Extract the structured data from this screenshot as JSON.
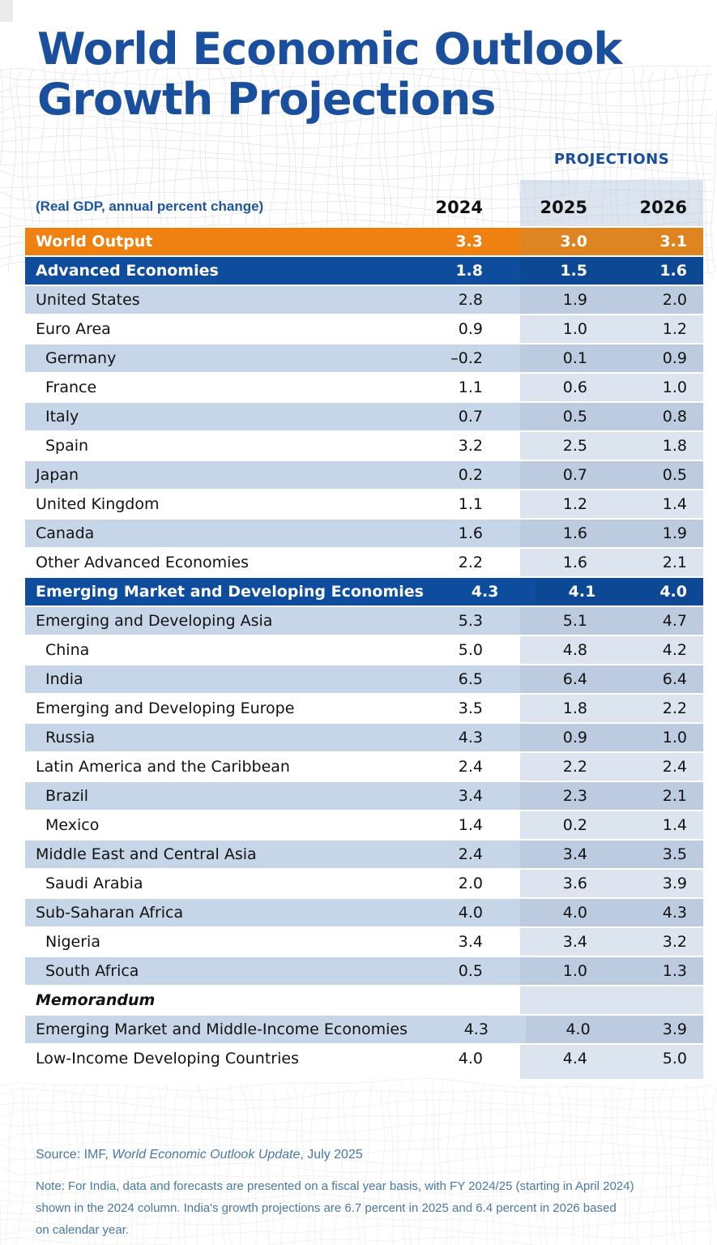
{
  "title": {
    "line1": "World Economic Outlook",
    "line2": "Growth Projections"
  },
  "colors": {
    "title_blue": "#1A4F9E",
    "header_blue": "#1C56A0",
    "projections_blue": "#1B4E99",
    "proj_band": "#DBE4EF",
    "orange_row": "#EE8110",
    "orange_row_proj": "#DE8420",
    "navy_row": "#0E4C9E",
    "navy_row_proj": "#0D4894",
    "light_row": "#C6D5E7",
    "light_row_proj": "#BCCBDF",
    "row_text_dark": "#121212",
    "row_text_light": "#FFFFFF",
    "year_text": "#111111",
    "footer_blue": "#4A78A2"
  },
  "chart_data": {
    "type": "table",
    "title": "World Economic Outlook Growth Projections",
    "unit_label": "(Real GDP, annual percent change)",
    "projections_label": "PROJECTIONS",
    "columns": [
      "2024",
      "2025",
      "2026"
    ],
    "projection_columns": [
      "2025",
      "2026"
    ],
    "rows": [
      {
        "label": "World Output",
        "values": [
          "3.3",
          "3.0",
          "3.1"
        ],
        "style": "orange",
        "bold": true
      },
      {
        "label": "Advanced Economies",
        "values": [
          "1.8",
          "1.5",
          "1.6"
        ],
        "style": "navy",
        "bold": true
      },
      {
        "label": "United States",
        "values": [
          "2.8",
          "1.9",
          "2.0"
        ],
        "style": "light"
      },
      {
        "label": "Euro Area",
        "values": [
          "0.9",
          "1.0",
          "1.2"
        ],
        "style": "white"
      },
      {
        "label": "Germany",
        "values": [
          "–0.2",
          "0.1",
          "0.9"
        ],
        "style": "light",
        "indent": true
      },
      {
        "label": "France",
        "values": [
          "1.1",
          "0.6",
          "1.0"
        ],
        "style": "white",
        "indent": true
      },
      {
        "label": "Italy",
        "values": [
          "0.7",
          "0.5",
          "0.8"
        ],
        "style": "light",
        "indent": true
      },
      {
        "label": "Spain",
        "values": [
          "3.2",
          "2.5",
          "1.8"
        ],
        "style": "white",
        "indent": true
      },
      {
        "label": "Japan",
        "values": [
          "0.2",
          "0.7",
          "0.5"
        ],
        "style": "light"
      },
      {
        "label": "United Kingdom",
        "values": [
          "1.1",
          "1.2",
          "1.4"
        ],
        "style": "white"
      },
      {
        "label": "Canada",
        "values": [
          "1.6",
          "1.6",
          "1.9"
        ],
        "style": "light"
      },
      {
        "label": "Other Advanced Economies",
        "values": [
          "2.2",
          "1.6",
          "2.1"
        ],
        "style": "white"
      },
      {
        "label": "Emerging Market and Developing Economies",
        "values": [
          "4.3",
          "4.1",
          "4.0"
        ],
        "style": "navy",
        "bold": true
      },
      {
        "label": "Emerging and Developing Asia",
        "values": [
          "5.3",
          "5.1",
          "4.7"
        ],
        "style": "light"
      },
      {
        "label": "China",
        "values": [
          "5.0",
          "4.8",
          "4.2"
        ],
        "style": "white",
        "indent": true
      },
      {
        "label": "India",
        "values": [
          "6.5",
          "6.4",
          "6.4"
        ],
        "style": "light",
        "indent": true
      },
      {
        "label": "Emerging and Developing Europe",
        "values": [
          "3.5",
          "1.8",
          "2.2"
        ],
        "style": "white"
      },
      {
        "label": "Russia",
        "values": [
          "4.3",
          "0.9",
          "1.0"
        ],
        "style": "light",
        "indent": true
      },
      {
        "label": "Latin America and the Caribbean",
        "values": [
          "2.4",
          "2.2",
          "2.4"
        ],
        "style": "white"
      },
      {
        "label": "Brazil",
        "values": [
          "3.4",
          "2.3",
          "2.1"
        ],
        "style": "light",
        "indent": true
      },
      {
        "label": "Mexico",
        "values": [
          "1.4",
          "0.2",
          "1.4"
        ],
        "style": "white",
        "indent": true
      },
      {
        "label": "Middle East and Central Asia",
        "values": [
          "2.4",
          "3.4",
          "3.5"
        ],
        "style": "light"
      },
      {
        "label": "Saudi Arabia",
        "values": [
          "2.0",
          "3.6",
          "3.9"
        ],
        "style": "white",
        "indent": true
      },
      {
        "label": "Sub-Saharan Africa",
        "values": [
          "4.0",
          "4.0",
          "4.3"
        ],
        "style": "light"
      },
      {
        "label": "Nigeria",
        "values": [
          "3.4",
          "3.4",
          "3.2"
        ],
        "style": "white",
        "indent": true
      },
      {
        "label": "South Africa",
        "values": [
          "0.5",
          "1.0",
          "1.3"
        ],
        "style": "light",
        "indent": true
      },
      {
        "label": "Memorandum",
        "values": [
          "",
          "",
          ""
        ],
        "style": "white",
        "bold": true,
        "italic": true
      },
      {
        "label": "Emerging Market and Middle-Income Economies",
        "values": [
          "4.3",
          "4.0",
          "3.9"
        ],
        "style": "light"
      },
      {
        "label": "Low-Income Developing Countries",
        "values": [
          "4.0",
          "4.4",
          "5.0"
        ],
        "style": "white"
      }
    ]
  },
  "footer": {
    "source_prefix": "Source: IMF, ",
    "source_italic": "World Economic Outlook Update",
    "source_suffix": ", July 2025",
    "note_lines": [
      "Note: For India, data and forecasts are presented on a fiscal year basis, with FY 2024/25 (starting in April 2024)",
      "shown in the 2024 column. India's growth projections are 6.7 percent in 2025 and 6.4 percent in 2026 based",
      "on calendar year."
    ]
  }
}
